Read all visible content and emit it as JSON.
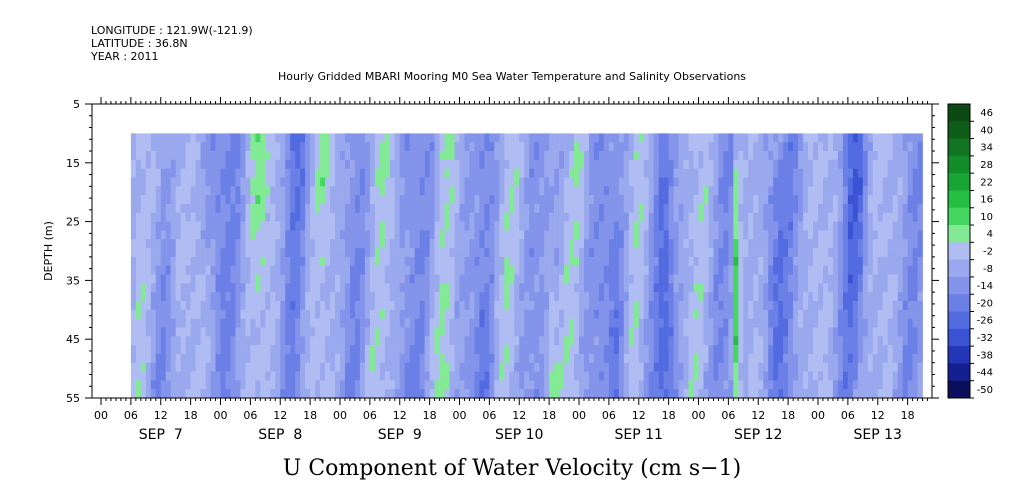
{
  "header": {
    "longitude": "LONGITUDE : 121.9W(-121.9)",
    "latitude": "LATITUDE : 36.8N",
    "year": "YEAR : 2011"
  },
  "chart_data": {
    "type": "heatmap",
    "title": "Hourly Gridded MBARI Mooring M0 Sea Water Temperature and Salinity Observations",
    "xlabel": "U Component of Water Velocity (cm s−1)",
    "ylabel": "DEPTH (m)",
    "ylim": [
      5,
      55
    ],
    "y_inverted": true,
    "y_ticks": [
      "5",
      "15",
      "25",
      "35",
      "45",
      "55"
    ],
    "x_hour_ticks": [
      "00",
      "06",
      "12",
      "18",
      "00",
      "06",
      "12",
      "18",
      "00",
      "06",
      "12",
      "18",
      "00",
      "06",
      "12",
      "18",
      "00",
      "06",
      "12",
      "18",
      "00",
      "06",
      "12",
      "18",
      "00",
      "06",
      "12",
      "18"
    ],
    "x_day_labels": [
      "SEP  7",
      "SEP  8",
      "SEP  9",
      "SEP 10",
      "SEP 11",
      "SEP 12",
      "SEP 13"
    ],
    "data_extent": {
      "depth_top": 10,
      "depth_bottom": 55,
      "start_hour_sep7": 6,
      "end_hour_sep13": 21
    },
    "colorbar": {
      "labels": [
        "46",
        "40",
        "34",
        "28",
        "22",
        "16",
        "10",
        "4",
        "-2",
        "-8",
        "-14",
        "-20",
        "-26",
        "-32",
        "-38",
        "-44",
        "-50"
      ],
      "range": [
        -50,
        50
      ],
      "levels": [
        {
          "min": 46,
          "color": "#0b4a14"
        },
        {
          "min": 40,
          "color": "#0e5e1a"
        },
        {
          "min": 34,
          "color": "#117522"
        },
        {
          "min": 28,
          "color": "#138c2a"
        },
        {
          "min": 22,
          "color": "#18a534"
        },
        {
          "min": 16,
          "color": "#25bf44"
        },
        {
          "min": 10,
          "color": "#45d65f"
        },
        {
          "min": 4,
          "color": "#82ea94"
        },
        {
          "min": -2,
          "color": "#b0bdf2"
        },
        {
          "min": -8,
          "color": "#9aa8ee"
        },
        {
          "min": -14,
          "color": "#8394ea"
        },
        {
          "min": -20,
          "color": "#6b80e6"
        },
        {
          "min": -26,
          "color": "#536be0"
        },
        {
          "min": -32,
          "color": "#3a53d4"
        },
        {
          "min": -38,
          "color": "#2436b8"
        },
        {
          "min": -44,
          "color": "#14208f"
        },
        {
          "min": -50,
          "color": "#0a0f5c"
        }
      ]
    },
    "features": [
      {
        "day": 7.6,
        "sign": 1,
        "width": 0.09,
        "amp": 10
      },
      {
        "day": 7.92,
        "sign": -1,
        "width": 0.1,
        "amp": 12
      },
      {
        "day": 8.3,
        "sign": 1,
        "width": 0.1,
        "amp": 10
      },
      {
        "day": 8.62,
        "sign": -1,
        "width": 0.09,
        "amp": 10
      },
      {
        "day": 8.85,
        "sign": 1,
        "width": 0.08,
        "amp": 9
      },
      {
        "day": 9.25,
        "sign": 1,
        "width": 0.08,
        "amp": 9
      },
      {
        "day": 9.55,
        "sign": -1,
        "width": 0.08,
        "amp": 10
      },
      {
        "day": 9.85,
        "sign": 1,
        "width": 0.08,
        "amp": 8
      },
      {
        "day": 10.2,
        "sign": -1,
        "width": 0.08,
        "amp": 11
      },
      {
        "day": 10.75,
        "sign": 1,
        "width": 0.06,
        "amp": 14
      },
      {
        "day": 11.3,
        "sign": -1,
        "width": 0.08,
        "amp": 12
      },
      {
        "day": 11.7,
        "sign": -1,
        "width": 0.07,
        "amp": 14
      },
      {
        "day": 12.3,
        "sign": 1,
        "width": 0.03,
        "amp": 22
      },
      {
        "day": 12.6,
        "sign": -1,
        "width": 0.1,
        "amp": 12
      },
      {
        "day": 13.3,
        "sign": -1,
        "width": 0.1,
        "amp": 12
      }
    ]
  }
}
